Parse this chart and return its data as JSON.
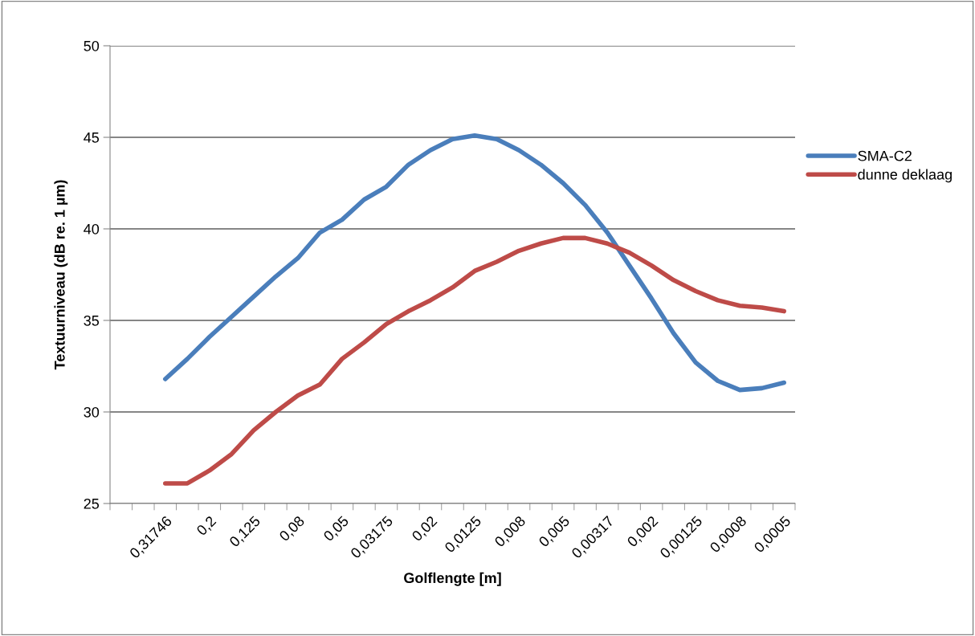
{
  "chart_data": {
    "type": "line",
    "xlabel": "Golflengte [m]",
    "ylabel": "Textuurniveau (dB re. 1 µm)",
    "categories": [
      null,
      null,
      "0,31746",
      null,
      "0,2",
      null,
      "0,125",
      null,
      "0,08",
      null,
      "0,05",
      null,
      "0,03175",
      null,
      "0,02",
      null,
      "0,0125",
      null,
      "0,008",
      null,
      "0,005",
      null,
      "0,00317",
      null,
      "0,002",
      null,
      "0,00125",
      null,
      "0,0008",
      null,
      "0,0005"
    ],
    "series": [
      {
        "name": "SMA-C2",
        "color": "#4a7ebb",
        "values": [
          null,
          null,
          31.8,
          32.9,
          34.1,
          35.2,
          36.3,
          37.4,
          38.4,
          39.8,
          40.5,
          41.6,
          42.3,
          43.5,
          44.3,
          44.9,
          45.1,
          44.9,
          44.3,
          43.5,
          42.5,
          41.3,
          39.8,
          38.0,
          36.2,
          34.3,
          32.7,
          31.7,
          31.2,
          31.3,
          31.6
        ]
      },
      {
        "name": "dunne deklaag",
        "color": "#be4b48",
        "values": [
          null,
          null,
          26.1,
          26.1,
          26.8,
          27.7,
          29.0,
          30.0,
          30.9,
          31.5,
          32.9,
          33.8,
          34.8,
          35.5,
          36.1,
          36.8,
          37.7,
          38.2,
          38.8,
          39.2,
          39.5,
          39.5,
          39.2,
          38.7,
          38.0,
          37.2,
          36.6,
          36.1,
          35.8,
          35.7,
          35.5
        ]
      }
    ],
    "ylim": [
      25,
      50
    ],
    "yticks": [
      25,
      30,
      35,
      40,
      45,
      50
    ],
    "grid": "y",
    "legend": "right",
    "marker": "none",
    "line_style": "solid"
  }
}
